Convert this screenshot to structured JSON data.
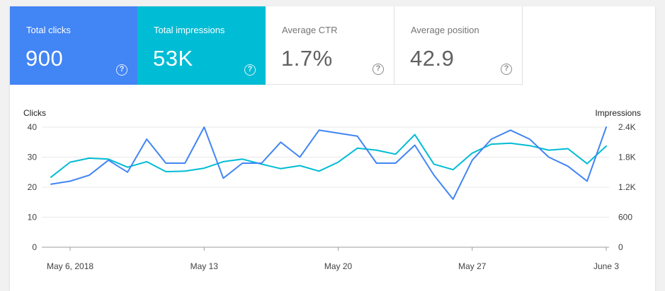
{
  "metrics": [
    {
      "label": "Total clicks",
      "value": "900",
      "help": "?"
    },
    {
      "label": "Total impressions",
      "value": "53K",
      "help": "?"
    },
    {
      "label": "Average CTR",
      "value": "1.7%",
      "help": "?"
    },
    {
      "label": "Average position",
      "value": "42.9",
      "help": "?"
    }
  ],
  "colors": {
    "clicks": "#4285f4",
    "impressions": "#00bcd4",
    "grid": "#e8e8e8",
    "axis": "#9e9e9e"
  },
  "chart_data": {
    "type": "line",
    "xlabel": "",
    "y_left": {
      "title": "Clicks",
      "ticks": [
        "0",
        "10",
        "20",
        "30",
        "40"
      ],
      "range": [
        0,
        40
      ]
    },
    "y_right": {
      "title": "Impressions",
      "ticks": [
        "0",
        "600",
        "1.2K",
        "1.8K",
        "2.4K"
      ],
      "range": [
        0,
        2400
      ]
    },
    "x_ticks": [
      {
        "label": "May 6, 2018",
        "index": 1
      },
      {
        "label": "May 13",
        "index": 8
      },
      {
        "label": "May 20",
        "index": 15
      },
      {
        "label": "May 27",
        "index": 22
      },
      {
        "label": "June 3",
        "index": 29
      }
    ],
    "x_count": 30,
    "series": [
      {
        "name": "Clicks",
        "axis": "left",
        "values": [
          21,
          22,
          24,
          29,
          25,
          36,
          28,
          28,
          40,
          23,
          28,
          28,
          35,
          30,
          39,
          38,
          37,
          28,
          28,
          34,
          24,
          16,
          29,
          36,
          39,
          36,
          30,
          27,
          22,
          40
        ]
      },
      {
        "name": "Impressions",
        "axis": "right",
        "values": [
          1400,
          1700,
          1780,
          1760,
          1600,
          1710,
          1510,
          1520,
          1580,
          1710,
          1760,
          1660,
          1570,
          1630,
          1520,
          1700,
          1980,
          1940,
          1860,
          2250,
          1660,
          1550,
          1880,
          2060,
          2080,
          2030,
          1940,
          1970,
          1670,
          2020
        ]
      }
    ]
  }
}
